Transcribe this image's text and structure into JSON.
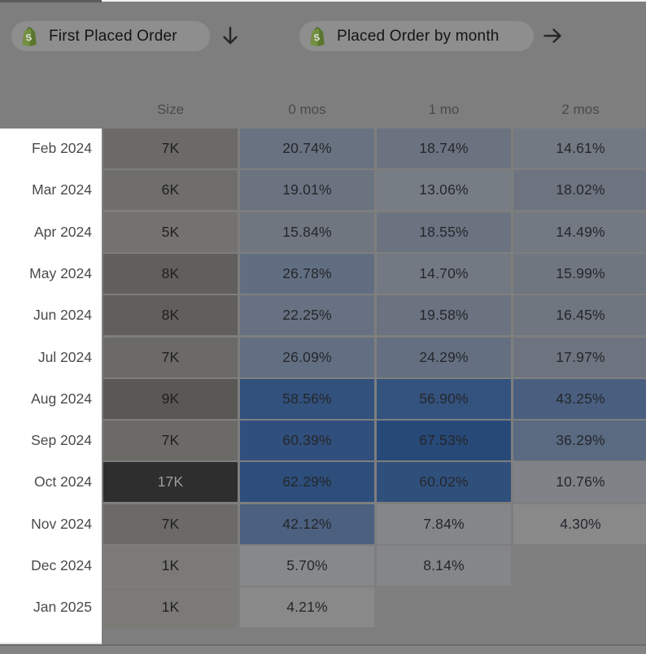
{
  "window": {
    "background": "#7e7e7e",
    "dimmed_overlay": true
  },
  "toolbar": {
    "pills": [
      {
        "label": "First Placed Order",
        "icon": "shopify-bag",
        "trailing_icon": "arrow-down"
      },
      {
        "label": "Placed Order by month",
        "icon": "shopify-bag",
        "trailing_icon": "arrow-right"
      }
    ]
  },
  "chart_data": {
    "type": "heatmap",
    "columns": [
      "Size",
      "0 mos",
      "1 mo",
      "2 mos"
    ],
    "rows": [
      {
        "month": "Feb 2024",
        "size_label": "7K",
        "size_value": 7,
        "values": [
          20.74,
          18.74,
          14.61
        ],
        "value_labels": [
          "20.74%",
          "18.74%",
          "14.61%"
        ]
      },
      {
        "month": "Mar 2024",
        "size_label": "6K",
        "size_value": 6,
        "values": [
          19.01,
          13.06,
          18.02
        ],
        "value_labels": [
          "19.01%",
          "13.06%",
          "18.02%"
        ]
      },
      {
        "month": "Apr 2024",
        "size_label": "5K",
        "size_value": 5,
        "values": [
          15.84,
          18.55,
          14.49
        ],
        "value_labels": [
          "15.84%",
          "18.55%",
          "14.49%"
        ]
      },
      {
        "month": "May 2024",
        "size_label": "8K",
        "size_value": 8,
        "values": [
          26.78,
          14.7,
          15.99
        ],
        "value_labels": [
          "26.78%",
          "14.70%",
          "15.99%"
        ]
      },
      {
        "month": "Jun 2024",
        "size_label": "8K",
        "size_value": 8,
        "values": [
          22.25,
          19.58,
          16.45
        ],
        "value_labels": [
          "22.25%",
          "19.58%",
          "16.45%"
        ]
      },
      {
        "month": "Jul 2024",
        "size_label": "7K",
        "size_value": 7,
        "values": [
          26.09,
          24.29,
          17.97
        ],
        "value_labels": [
          "26.09%",
          "24.29%",
          "17.97%"
        ]
      },
      {
        "month": "Aug 2024",
        "size_label": "9K",
        "size_value": 9,
        "values": [
          58.56,
          56.9,
          43.25
        ],
        "value_labels": [
          "58.56%",
          "56.90%",
          "43.25%"
        ]
      },
      {
        "month": "Sep 2024",
        "size_label": "7K",
        "size_value": 7,
        "values": [
          60.39,
          67.53,
          36.29
        ],
        "value_labels": [
          "60.39%",
          "67.53%",
          "36.29%"
        ]
      },
      {
        "month": "Oct 2024",
        "size_label": "17K",
        "size_value": 17,
        "values": [
          62.29,
          60.02,
          10.76
        ],
        "value_labels": [
          "62.29%",
          "60.02%",
          "10.76%"
        ]
      },
      {
        "month": "Nov 2024",
        "size_label": "7K",
        "size_value": 7,
        "values": [
          42.12,
          7.84,
          4.3
        ],
        "value_labels": [
          "42.12%",
          "7.84%",
          "4.30%"
        ]
      },
      {
        "month": "Dec 2024",
        "size_label": "1K",
        "size_value": 1,
        "values": [
          5.7,
          8.14,
          null
        ],
        "value_labels": [
          "5.70%",
          "8.14%",
          ""
        ]
      },
      {
        "month": "Jan 2025",
        "size_label": "1K",
        "size_value": 1,
        "values": [
          4.21,
          null,
          null
        ],
        "value_labels": [
          "4.21%",
          "",
          ""
        ]
      }
    ]
  },
  "colors": {
    "background": "#7e7e7e",
    "pill_background": "#8e8e8e",
    "pill_text": "#141414",
    "label_panel_background": "#ffffff",
    "row_label_text": "#4a4a4a",
    "column_header_text": "#4a4a4a",
    "cell_text": "#25272b",
    "size_text_dark": "#202020",
    "size_text_light": "#9d9d9d",
    "shopify_green": "#73903f",
    "shopify_green_dark": "#5a762f",
    "value_scale": [
      [
        0,
        "#8e8e8e"
      ],
      [
        5,
        "#888889"
      ],
      [
        8,
        "#858689"
      ],
      [
        11,
        "#7f8287"
      ],
      [
        14,
        "#747a83"
      ],
      [
        16,
        "#70767f"
      ],
      [
        20,
        "#6a7280"
      ],
      [
        27,
        "#616e82"
      ],
      [
        36,
        "#5a6a81"
      ],
      [
        43,
        "#4a5f80"
      ],
      [
        57,
        "#34527e"
      ],
      [
        68,
        "#264977"
      ]
    ],
    "size_scale": [
      [
        1,
        "#7b7a77"
      ],
      [
        5,
        "#747270"
      ],
      [
        6,
        "#6f6e6a"
      ],
      [
        7,
        "#6b6a66"
      ],
      [
        8,
        "#615f5c"
      ],
      [
        9,
        "#5a5855"
      ],
      [
        17,
        "#2e2e2e"
      ]
    ]
  }
}
